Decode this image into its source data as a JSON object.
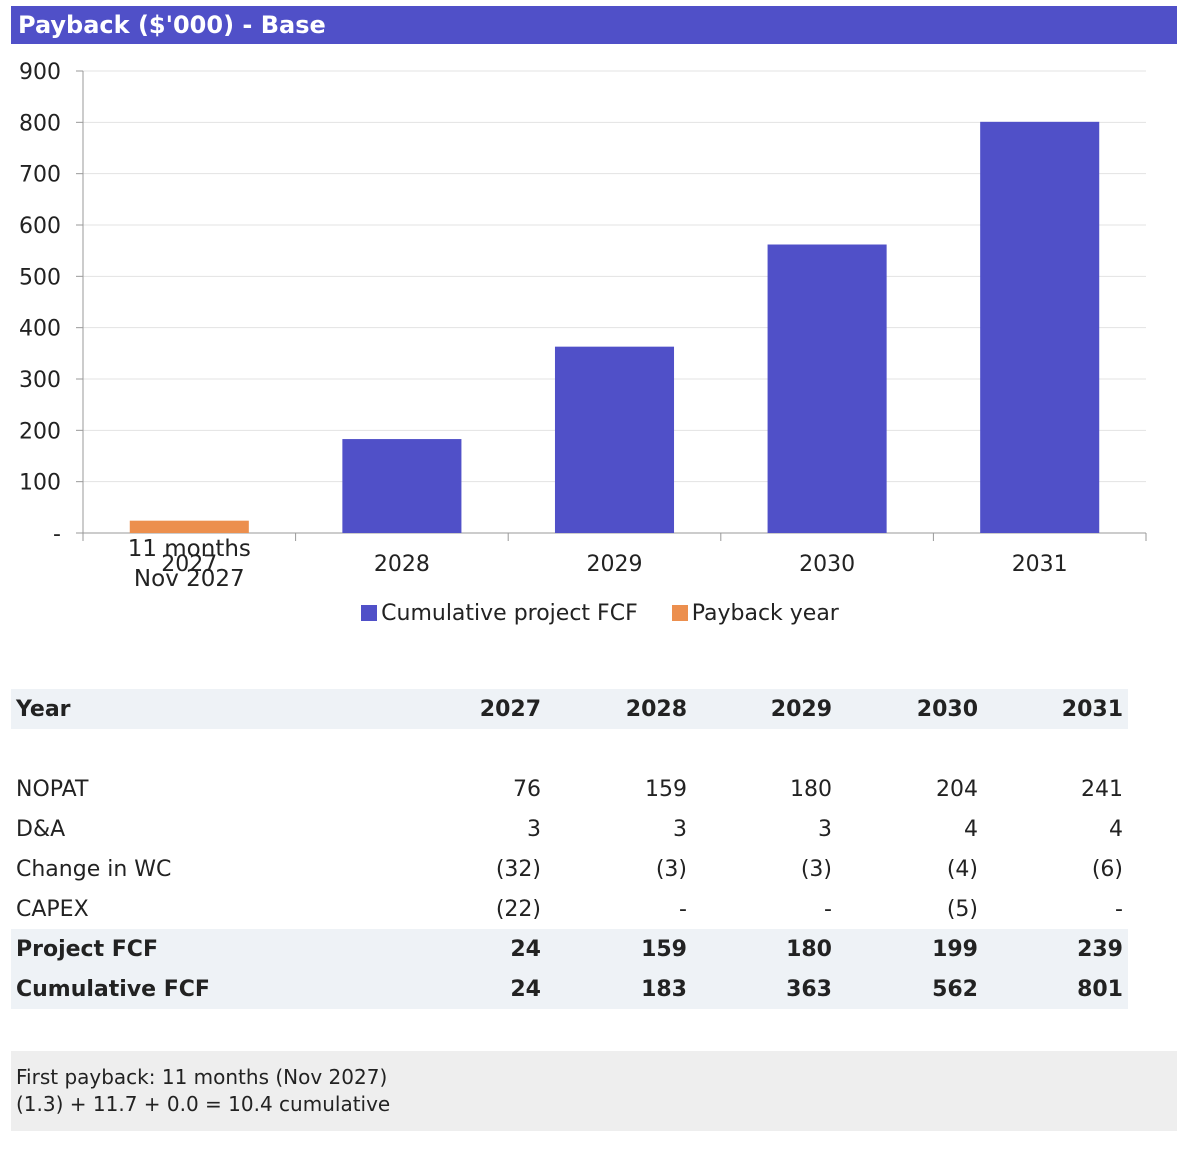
{
  "title": "Payback ($'000) - Base",
  "colors": {
    "header": "#5050c8",
    "cumulative": "#5050c8",
    "payback": "#ec8f4e"
  },
  "chart_data": {
    "type": "bar",
    "categories": [
      "2027",
      "2028",
      "2029",
      "2030",
      "2031"
    ],
    "series": [
      {
        "name": "Cumulative project FCF",
        "values": [
          null,
          183,
          363,
          562,
          801
        ]
      },
      {
        "name": "Payback year",
        "values": [
          24,
          null,
          null,
          null,
          null
        ]
      }
    ],
    "ylim": [
      0,
      900
    ],
    "yticks": [
      0,
      100,
      200,
      300,
      400,
      500,
      600,
      700,
      800,
      900
    ],
    "ytick_labels": [
      "-",
      "100",
      "200",
      "300",
      "400",
      "500",
      "600",
      "700",
      "800",
      "900"
    ],
    "annotation": {
      "category": "2027",
      "line1": "11 months",
      "line2": "Nov 2027"
    },
    "grid": true,
    "legend": "bottom"
  },
  "table": {
    "header_label": "Year",
    "years": [
      "2027",
      "2028",
      "2029",
      "2030",
      "2031"
    ],
    "rows": [
      {
        "label": "NOPAT",
        "values": [
          "76",
          "159",
          "180",
          "204",
          "241"
        ],
        "bold": false
      },
      {
        "label": "D&A",
        "values": [
          "3",
          "3",
          "3",
          "4",
          "4"
        ],
        "bold": false
      },
      {
        "label": "Change in WC",
        "values": [
          "(32)",
          "(3)",
          "(3)",
          "(4)",
          "(6)"
        ],
        "bold": false
      },
      {
        "label": "CAPEX",
        "values": [
          "(22)",
          "-",
          "-",
          "(5)",
          "-"
        ],
        "bold": false
      },
      {
        "label": "Project FCF",
        "values": [
          "24",
          "159",
          "180",
          "199",
          "239"
        ],
        "bold": true
      },
      {
        "label": "Cumulative FCF",
        "values": [
          "24",
          "183",
          "363",
          "562",
          "801"
        ],
        "bold": true
      }
    ]
  },
  "notes": {
    "line1": "First payback: 11 months (Nov 2027)",
    "line2": "(1.3) + 11.7 + 0.0 = 10.4 cumulative"
  }
}
